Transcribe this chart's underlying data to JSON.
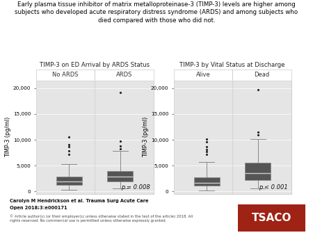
{
  "title_line1": "Early plasma tissue inhibitor of matrix metalloproteinase-3 (TIMP-3) levels are higher among",
  "title_line2": "subjects who developed acute respiratory distress syndrome (ARDS) and among subjects who",
  "title_line3": "died compared with those who did not.",
  "panel1_title": "TIMP-3 on ED Arrival by ARDS Status",
  "panel2_title": "TIMP-3 by Vital Status at Discharge",
  "panel1_groups": [
    "No ARDS",
    "ARDS"
  ],
  "panel2_groups": [
    "Alive",
    "Dead"
  ],
  "ylabel": "TIMP-3 (pg/ml)",
  "yticks": [
    0,
    5000,
    10000,
    15000,
    20000
  ],
  "ytick_labels": [
    "0",
    "5,000",
    "10,000",
    "15,000",
    "20,000"
  ],
  "ylim": [
    -500,
    21500
  ],
  "panel1_pval": "p = 0.008",
  "panel2_pval": "p < 0.001",
  "box_color": "#555555",
  "whisker_color": "#888888",
  "median_color": "#cccccc",
  "panel_bg": "#e5e5e5",
  "strip_bg": "#ffffff",
  "strip_text_color": "#333333",
  "panel_border_color": "#cccccc",
  "panel1_boxes": {
    "No ARDS": {
      "q1": 1300,
      "median": 1900,
      "q3": 2900,
      "whisker_low": 350,
      "whisker_high": 5300,
      "outliers": [
        7200,
        7800,
        8600,
        9100,
        10600
      ]
    },
    "ARDS": {
      "q1": 1900,
      "median": 2900,
      "q3": 4000,
      "whisker_low": 500,
      "whisker_high": 7800,
      "outliers": [
        8200,
        8800,
        9700,
        19200
      ]
    }
  },
  "panel2_boxes": {
    "Alive": {
      "q1": 1100,
      "median": 1700,
      "q3": 2700,
      "whisker_low": 150,
      "whisker_high": 5700,
      "outliers": [
        7200,
        7700,
        8100,
        8700,
        9600,
        10200
      ]
    },
    "Dead": {
      "q1": 2200,
      "median": 3500,
      "q3": 5500,
      "whisker_low": 600,
      "whisker_high": 10200,
      "outliers": [
        11000,
        11500,
        19700
      ]
    }
  },
  "footer_text1": "Carolyn M Hendrickson et al. Trauma Surg Acute Care",
  "footer_text2": "Open 2018;3:e000171",
  "footer_small": "© Article author(s) (or their employer(s) unless otherwise stated in the text of the article) 2018. All\nrights reserved. No commercial use is permitted unless otherwise expressly granted.",
  "tsaco_bg": "#9e2314",
  "tsaco_text": "TSACO"
}
